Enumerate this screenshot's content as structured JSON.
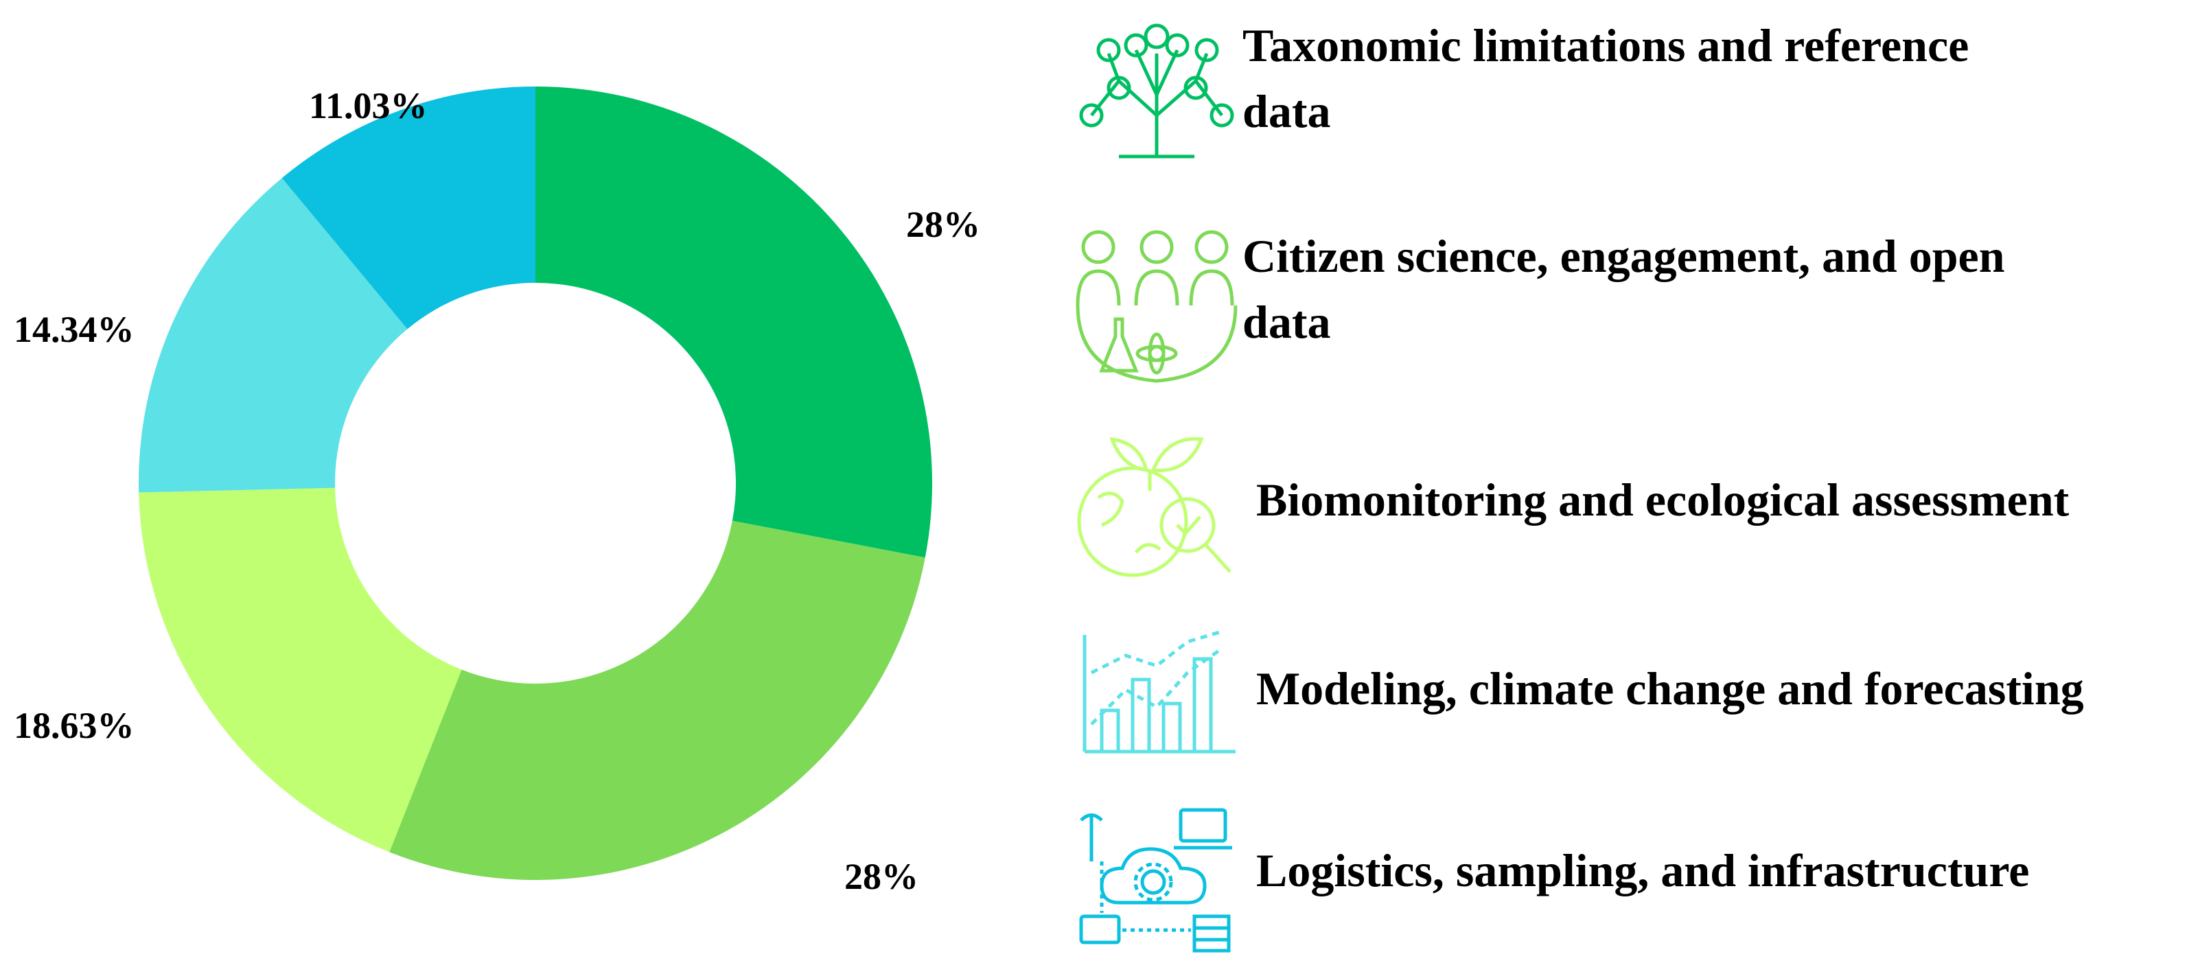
{
  "chart_data": {
    "type": "pie",
    "donut": true,
    "categories": [
      "Taxonomic limitations and reference data",
      "Citizen science, engagement, and open data",
      "Biomonitoring and ecological assessment",
      "Modeling, climate change and forecasting",
      "Logistics, sampling, and infrastructure"
    ],
    "values": [
      28,
      28,
      18.63,
      14.34,
      11.03
    ],
    "value_labels": [
      "28%",
      "28%",
      "18.63%",
      "14.34%",
      "11.03%"
    ],
    "colors": [
      "#00BF63",
      "#7ED957",
      "#C1FF72",
      "#5CE1E6",
      "#0CC0DF"
    ],
    "legend_position": "right"
  },
  "legend": {
    "items": [
      {
        "text": "Taxonomic limitations and reference\ndata",
        "icon": "tree-network-icon",
        "color": "#00BF63"
      },
      {
        "text": "Citizen science, engagement, and open\ndata",
        "icon": "people-science-icon",
        "color": "#7ED957"
      },
      {
        "text": "Biomonitoring and ecological assessment",
        "icon": "globe-magnifier-leaf-icon",
        "color": "#C1FF72"
      },
      {
        "text": "Modeling, climate change and forecasting",
        "icon": "bar-line-chart-icon",
        "color": "#5CE1E6"
      },
      {
        "text": "Logistics, sampling, and infrastructure",
        "icon": "cloud-network-icon",
        "color": "#0CC0DF"
      }
    ]
  }
}
